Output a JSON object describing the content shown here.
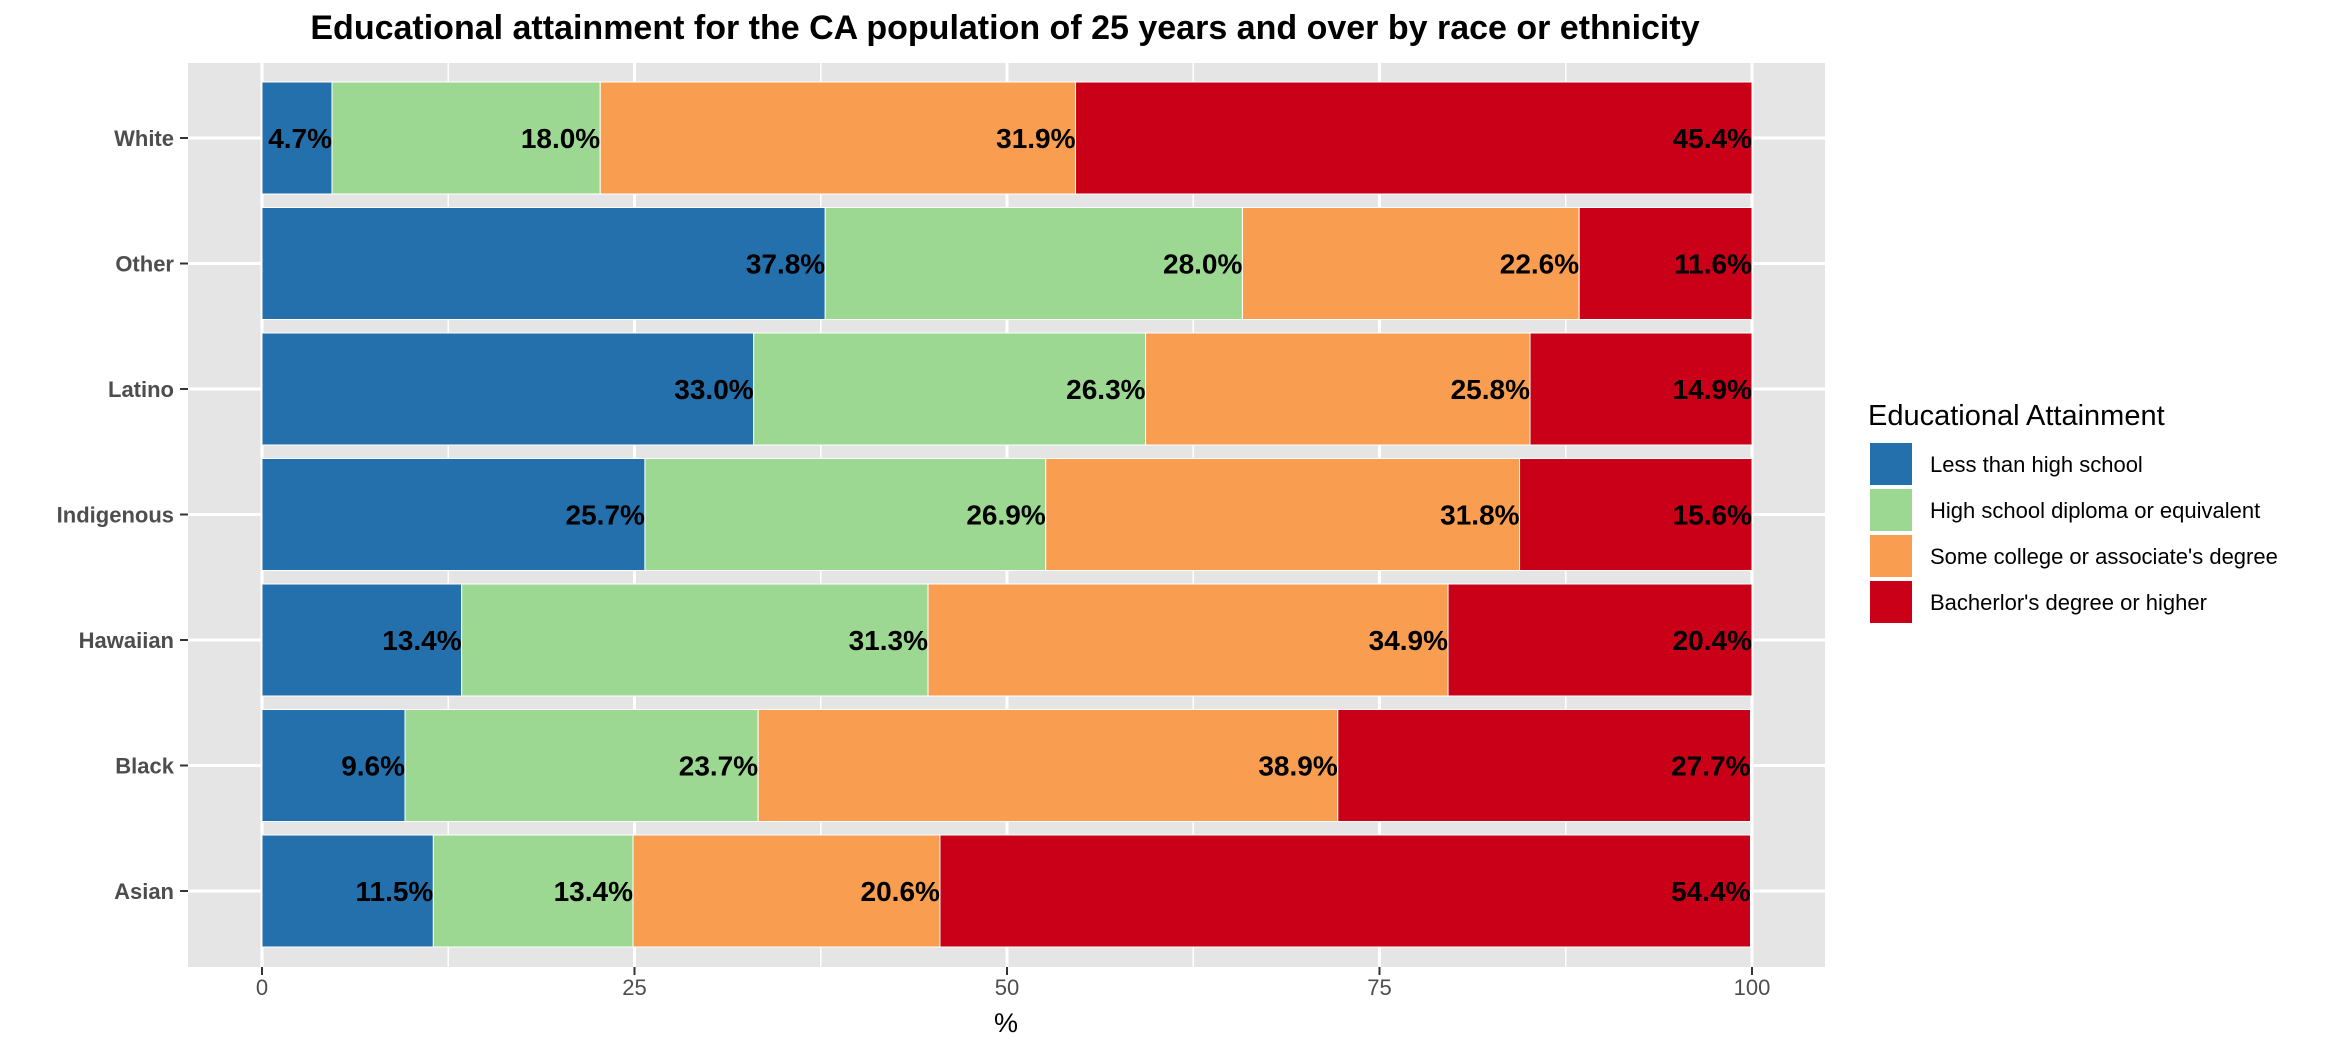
{
  "chart_data": {
    "type": "bar",
    "orientation": "horizontal",
    "stacked": true,
    "title": "Educational attainment for the CA population of 25 years and over by race or ethnicity",
    "xlabel": "%",
    "ylabel": "",
    "xlim": [
      0,
      100
    ],
    "x_ticks": [
      "0",
      "25",
      "50",
      "75",
      "100"
    ],
    "x_tick_values": [
      0,
      25,
      50,
      75,
      100
    ],
    "grid": true,
    "legend_position": "right",
    "legend_title": "Educational Attainment",
    "categories": [
      "White",
      "Other",
      "Latino",
      "Indigenous",
      "Hawaiian",
      "Black",
      "Asian"
    ],
    "series": [
      {
        "name": "Less than high school",
        "color": "#2470ad",
        "values": [
          4.7,
          37.8,
          33.0,
          25.7,
          13.4,
          9.6,
          11.5
        ],
        "labels": [
          "4.7%",
          "37.8%",
          "33.0%",
          "25.7%",
          "13.4%",
          "9.6%",
          "11.5%"
        ]
      },
      {
        "name": "High school diploma or equivalent",
        "color": "#9dd893",
        "values": [
          18.0,
          28.0,
          26.3,
          26.9,
          31.3,
          23.7,
          13.4
        ],
        "labels": [
          "18.0%",
          "28.0%",
          "26.3%",
          "26.9%",
          "31.3%",
          "23.7%",
          "13.4%"
        ]
      },
      {
        "name": "Some college or associate's degree",
        "color": "#f99d51",
        "values": [
          31.9,
          22.6,
          25.8,
          31.8,
          34.9,
          38.9,
          20.6
        ],
        "labels": [
          "31.9%",
          "22.6%",
          "25.8%",
          "31.8%",
          "34.9%",
          "38.9%",
          "20.6%"
        ]
      },
      {
        "name": "Bacherlor's degree or higher",
        "color": "#ca0019",
        "values": [
          45.4,
          11.6,
          14.9,
          15.6,
          20.4,
          27.7,
          54.4
        ],
        "labels": [
          "45.4%",
          "11.6%",
          "14.9%",
          "15.6%",
          "20.4%",
          "27.7%",
          "54.4%"
        ]
      }
    ],
    "colors": {
      "panel_background": "#e5e5e5",
      "gridline": "#ffffff",
      "axis_text": "#4d4d4d",
      "label_text": "#000000"
    }
  }
}
